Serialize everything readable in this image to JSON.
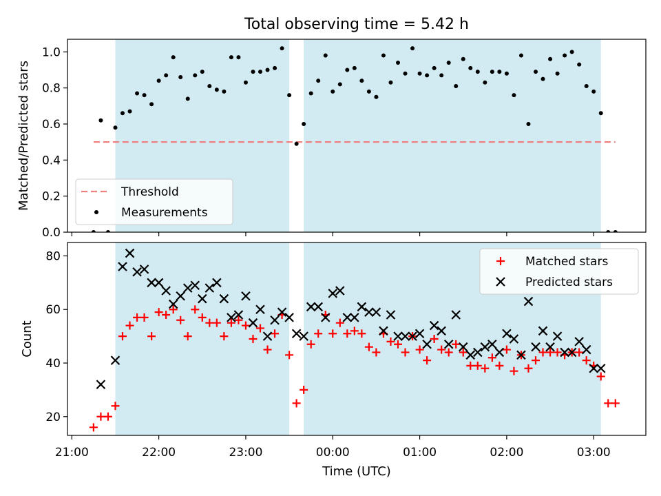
{
  "chart_data": [
    {
      "type": "scatter",
      "title": "Total observing time = 5.42 h",
      "xlabel": "",
      "ylabel": "Matched/Predicted stars",
      "ylim": [
        0,
        1.07
      ],
      "yticks": [
        "0.0",
        "0.2",
        "0.4",
        "0.6",
        "0.8",
        "1.0"
      ],
      "legend_position": "lower-left",
      "series": [
        {
          "name": "Threshold",
          "style": "dashed-line",
          "color": "#f08080",
          "x": [
            "21:15",
            "03:15"
          ],
          "y": [
            0.5,
            0.5
          ]
        },
        {
          "name": "Measurements",
          "style": "dot",
          "color": "#000000",
          "x": [
            "21:15",
            "21:20",
            "21:25",
            "21:30",
            "21:35",
            "21:40",
            "21:45",
            "21:50",
            "21:55",
            "22:00",
            "22:05",
            "22:10",
            "22:15",
            "22:20",
            "22:25",
            "22:30",
            "22:35",
            "22:40",
            "22:45",
            "22:50",
            "22:55",
            "23:00",
            "23:05",
            "23:10",
            "23:15",
            "23:20",
            "23:25",
            "23:30",
            "23:35",
            "23:40",
            "23:45",
            "23:50",
            "23:55",
            "00:00",
            "00:05",
            "00:10",
            "00:15",
            "00:20",
            "00:25",
            "00:30",
            "00:35",
            "00:40",
            "00:45",
            "00:50",
            "00:55",
            "01:00",
            "01:05",
            "01:10",
            "01:15",
            "01:20",
            "01:25",
            "01:30",
            "01:35",
            "01:40",
            "01:45",
            "01:50",
            "01:55",
            "02:00",
            "02:05",
            "02:10",
            "02:15",
            "02:20",
            "02:25",
            "02:30",
            "02:35",
            "02:40",
            "02:45",
            "02:50",
            "02:55",
            "03:00",
            "03:05",
            "03:10",
            "03:15"
          ],
          "y": [
            0.0,
            0.62,
            0.0,
            0.58,
            0.66,
            0.67,
            0.77,
            0.76,
            0.71,
            0.84,
            0.87,
            0.97,
            0.86,
            0.74,
            0.87,
            0.89,
            0.81,
            0.79,
            0.78,
            0.97,
            0.97,
            0.83,
            0.89,
            0.89,
            0.9,
            0.91,
            1.02,
            0.76,
            0.49,
            0.6,
            0.77,
            0.84,
            0.98,
            0.78,
            0.82,
            0.9,
            0.91,
            0.84,
            0.78,
            0.75,
            0.98,
            0.83,
            0.94,
            0.88,
            1.02,
            0.88,
            0.87,
            0.91,
            0.87,
            0.94,
            0.81,
            0.96,
            0.91,
            0.89,
            0.83,
            0.89,
            0.89,
            0.88,
            0.76,
            0.98,
            0.6,
            0.89,
            0.85,
            0.96,
            0.88,
            0.98,
            1.0,
            0.93,
            0.81,
            0.78,
            0.66,
            0.0,
            0.0
          ]
        }
      ]
    },
    {
      "type": "scatter",
      "title": "",
      "xlabel": "Time (UTC)",
      "ylabel": "Count",
      "ylim": [
        13,
        85
      ],
      "yticks": [
        "20",
        "40",
        "60",
        "80"
      ],
      "xticks": [
        "21:00",
        "22:00",
        "23:00",
        "00:00",
        "01:00",
        "02:00",
        "03:00"
      ],
      "legend_position": "upper-right",
      "series": [
        {
          "name": "Matched stars",
          "style": "plus",
          "color": "#ff0000",
          "x": [
            "21:15",
            "21:20",
            "21:25",
            "21:30",
            "21:35",
            "21:40",
            "21:45",
            "21:50",
            "21:55",
            "22:00",
            "22:05",
            "22:10",
            "22:15",
            "22:20",
            "22:25",
            "22:30",
            "22:35",
            "22:40",
            "22:45",
            "22:50",
            "22:55",
            "23:00",
            "23:05",
            "23:10",
            "23:15",
            "23:20",
            "23:25",
            "23:30",
            "23:35",
            "23:40",
            "23:45",
            "23:50",
            "23:55",
            "00:00",
            "00:05",
            "00:10",
            "00:15",
            "00:20",
            "00:25",
            "00:30",
            "00:35",
            "00:40",
            "00:45",
            "00:50",
            "00:55",
            "01:00",
            "01:05",
            "01:10",
            "01:15",
            "01:20",
            "01:25",
            "01:30",
            "01:35",
            "01:40",
            "01:45",
            "01:50",
            "01:55",
            "02:00",
            "02:05",
            "02:10",
            "02:15",
            "02:20",
            "02:25",
            "02:30",
            "02:35",
            "02:40",
            "02:45",
            "02:50",
            "02:55",
            "03:00",
            "03:05",
            "03:10",
            "03:15"
          ],
          "y": [
            16,
            20,
            20,
            24,
            50,
            54,
            57,
            57,
            50,
            59,
            58,
            60,
            56,
            50,
            60,
            57,
            55,
            55,
            50,
            55,
            56,
            54,
            49,
            53,
            45,
            51,
            58,
            43,
            25,
            30,
            47,
            51,
            58,
            51,
            55,
            51,
            52,
            51,
            46,
            44,
            51,
            48,
            47,
            44,
            50,
            45,
            41,
            49,
            45,
            44,
            47,
            44,
            39,
            39,
            38,
            42,
            39,
            45,
            37,
            43,
            38,
            41,
            44,
            44,
            44,
            43,
            44,
            44,
            41,
            39,
            35,
            25,
            25
          ]
        },
        {
          "name": "Predicted stars",
          "style": "x",
          "color": "#000000",
          "x": [
            "21:20",
            "21:30",
            "21:35",
            "21:40",
            "21:45",
            "21:50",
            "21:55",
            "22:00",
            "22:05",
            "22:10",
            "22:15",
            "22:20",
            "22:25",
            "22:30",
            "22:35",
            "22:40",
            "22:45",
            "22:50",
            "22:55",
            "23:00",
            "23:05",
            "23:10",
            "23:15",
            "23:20",
            "23:25",
            "23:30",
            "23:35",
            "23:40",
            "23:45",
            "23:50",
            "23:55",
            "00:00",
            "00:05",
            "00:10",
            "00:15",
            "00:20",
            "00:25",
            "00:30",
            "00:35",
            "00:40",
            "00:45",
            "00:50",
            "00:55",
            "01:00",
            "01:05",
            "01:10",
            "01:15",
            "01:20",
            "01:25",
            "01:30",
            "01:35",
            "01:40",
            "01:45",
            "01:50",
            "01:55",
            "02:00",
            "02:05",
            "02:10",
            "02:15",
            "02:20",
            "02:25",
            "02:30",
            "02:35",
            "02:40",
            "02:45",
            "02:50",
            "02:55",
            "03:00",
            "03:05"
          ],
          "y": [
            32,
            41,
            76,
            81,
            74,
            75,
            70,
            70,
            67,
            62,
            65,
            68,
            69,
            64,
            68,
            70,
            64,
            57,
            58,
            65,
            55,
            60,
            50,
            56,
            59,
            57,
            51,
            50,
            61,
            61,
            57,
            66,
            67,
            57,
            57,
            61,
            59,
            59,
            52,
            58,
            50,
            50,
            50,
            51,
            47,
            54,
            52,
            47,
            58,
            46,
            43,
            44,
            46,
            47,
            44,
            51,
            49,
            43,
            63,
            46,
            52,
            46,
            50,
            44,
            44,
            48,
            45,
            38,
            38
          ]
        }
      ]
    }
  ],
  "shaded_intervals": [
    {
      "start": "21:30",
      "end": "23:30",
      "color": "#add8e6"
    },
    {
      "start": "23:40",
      "end": "03:05",
      "color": "#add8e6"
    }
  ]
}
